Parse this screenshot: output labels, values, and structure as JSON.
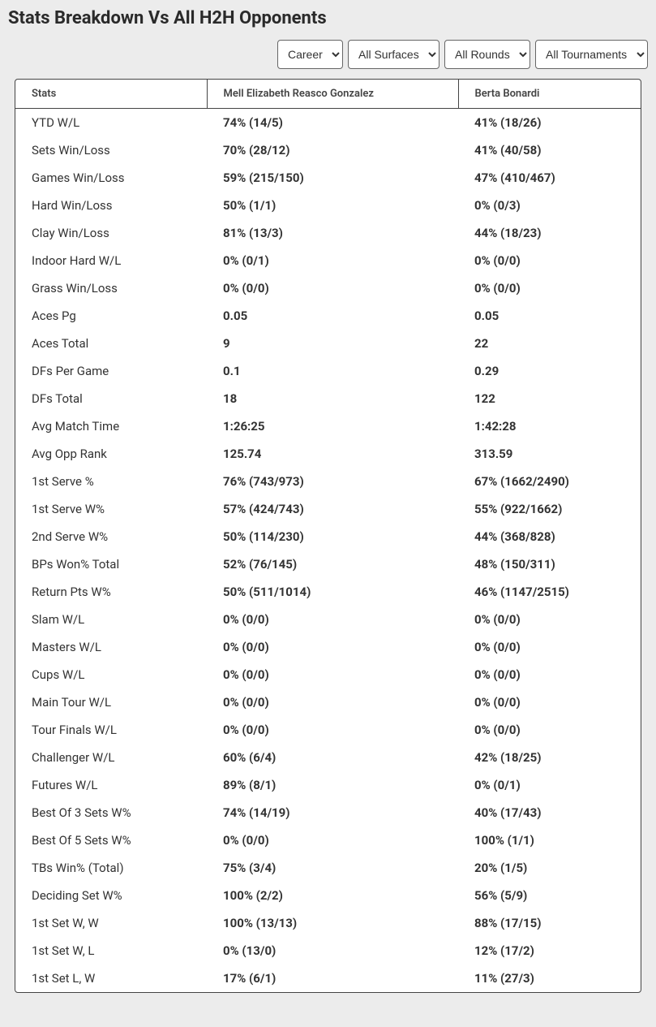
{
  "title": "Stats Breakdown Vs All H2H Opponents",
  "filters": {
    "period": {
      "selected": "Career"
    },
    "surface": {
      "selected": "All Surfaces"
    },
    "round": {
      "selected": "All Rounds"
    },
    "tournament": {
      "selected": "All Tournaments"
    }
  },
  "columns": {
    "stat": "Stats",
    "player1": "Mell Elizabeth Reasco Gonzalez",
    "player2": "Berta Bonardi"
  },
  "rows": [
    {
      "stat": "YTD W/L",
      "p1": "74% (14/5)",
      "p2": "41% (18/26)"
    },
    {
      "stat": "Sets Win/Loss",
      "p1": "70% (28/12)",
      "p2": "41% (40/58)"
    },
    {
      "stat": "Games Win/Loss",
      "p1": "59% (215/150)",
      "p2": "47% (410/467)"
    },
    {
      "stat": "Hard Win/Loss",
      "p1": "50% (1/1)",
      "p2": "0% (0/3)"
    },
    {
      "stat": "Clay Win/Loss",
      "p1": "81% (13/3)",
      "p2": "44% (18/23)"
    },
    {
      "stat": "Indoor Hard W/L",
      "p1": "0% (0/1)",
      "p2": "0% (0/0)"
    },
    {
      "stat": "Grass Win/Loss",
      "p1": "0% (0/0)",
      "p2": "0% (0/0)"
    },
    {
      "stat": "Aces Pg",
      "p1": "0.05",
      "p2": "0.05"
    },
    {
      "stat": "Aces Total",
      "p1": "9",
      "p2": "22"
    },
    {
      "stat": "DFs Per Game",
      "p1": "0.1",
      "p2": "0.29"
    },
    {
      "stat": "DFs Total",
      "p1": "18",
      "p2": "122"
    },
    {
      "stat": "Avg Match Time",
      "p1": "1:26:25",
      "p2": "1:42:28"
    },
    {
      "stat": "Avg Opp Rank",
      "p1": "125.74",
      "p2": "313.59"
    },
    {
      "stat": "1st Serve %",
      "p1": "76% (743/973)",
      "p2": "67% (1662/2490)"
    },
    {
      "stat": "1st Serve W%",
      "p1": "57% (424/743)",
      "p2": "55% (922/1662)"
    },
    {
      "stat": "2nd Serve W%",
      "p1": "50% (114/230)",
      "p2": "44% (368/828)"
    },
    {
      "stat": "BPs Won% Total",
      "p1": "52% (76/145)",
      "p2": "48% (150/311)"
    },
    {
      "stat": "Return Pts W%",
      "p1": "50% (511/1014)",
      "p2": "46% (1147/2515)"
    },
    {
      "stat": "Slam W/L",
      "p1": "0% (0/0)",
      "p2": "0% (0/0)"
    },
    {
      "stat": "Masters W/L",
      "p1": "0% (0/0)",
      "p2": "0% (0/0)"
    },
    {
      "stat": "Cups W/L",
      "p1": "0% (0/0)",
      "p2": "0% (0/0)"
    },
    {
      "stat": "Main Tour W/L",
      "p1": "0% (0/0)",
      "p2": "0% (0/0)"
    },
    {
      "stat": "Tour Finals W/L",
      "p1": "0% (0/0)",
      "p2": "0% (0/0)"
    },
    {
      "stat": "Challenger W/L",
      "p1": "60% (6/4)",
      "p2": "42% (18/25)"
    },
    {
      "stat": "Futures W/L",
      "p1": "89% (8/1)",
      "p2": "0% (0/1)"
    },
    {
      "stat": "Best Of 3 Sets W%",
      "p1": "74% (14/19)",
      "p2": "40% (17/43)"
    },
    {
      "stat": "Best Of 5 Sets W%",
      "p1": "0% (0/0)",
      "p2": "100% (1/1)"
    },
    {
      "stat": "TBs Win% (Total)",
      "p1": "75% (3/4)",
      "p2": "20% (1/5)"
    },
    {
      "stat": "Deciding Set W%",
      "p1": "100% (2/2)",
      "p2": "56% (5/9)"
    },
    {
      "stat": "1st Set W, W",
      "p1": "100% (13/13)",
      "p2": "88% (17/15)"
    },
    {
      "stat": "1st Set W, L",
      "p1": "0% (13/0)",
      "p2": "12% (17/2)"
    },
    {
      "stat": "1st Set L, W",
      "p1": "17% (6/1)",
      "p2": "11% (27/3)"
    }
  ]
}
